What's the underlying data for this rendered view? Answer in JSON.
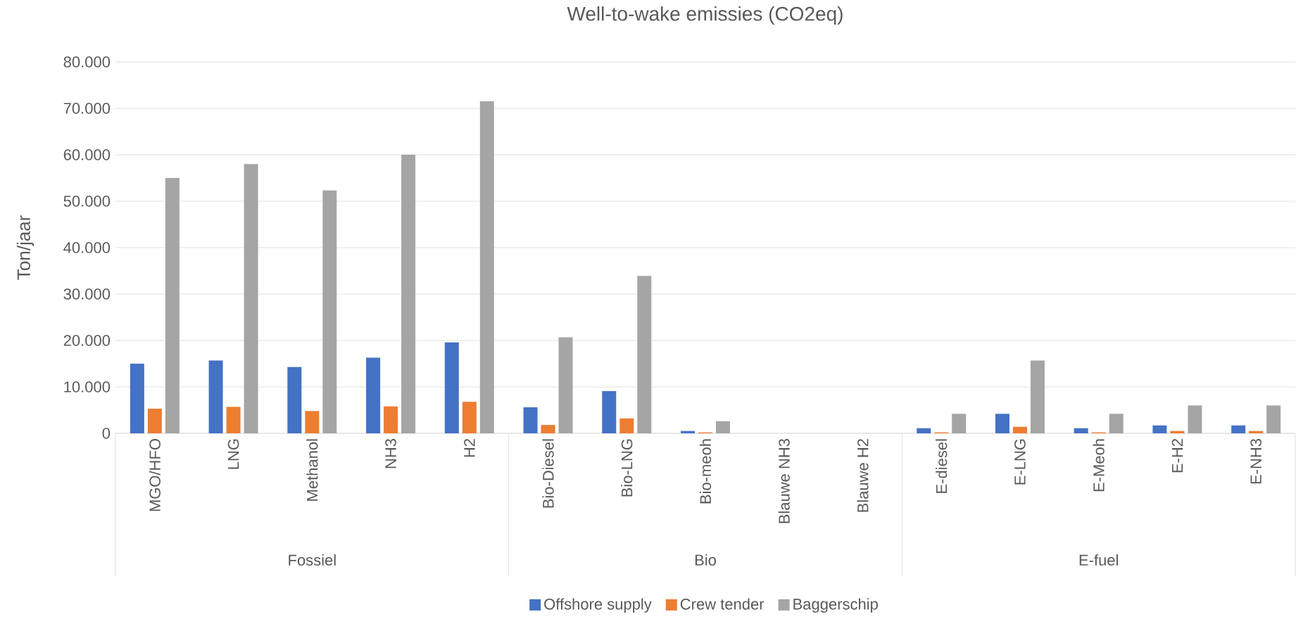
{
  "chart_data": {
    "type": "bar",
    "title": "Well-to-wake emissies (CO2eq)",
    "ylabel": "Ton/jaar",
    "categories": [
      "MGO/HFO",
      "LNG",
      "Methanol",
      "NH3",
      "H2",
      "Bio-Diesel",
      "Bio-LNG",
      "Bio-meoh",
      "Blauwe NH3",
      "Blauwe H2",
      "E-diesel",
      "E-LNG",
      "E-Meoh",
      "E-H2",
      "E-NH3"
    ],
    "series": [
      {
        "name": "Offshore supply",
        "color": "#4472c4",
        "values": [
          15000,
          15700,
          14300,
          16300,
          19600,
          5600,
          9100,
          500,
          0,
          0,
          1100,
          4200,
          1100,
          1700,
          1700
        ]
      },
      {
        "name": "Crew tender",
        "color": "#ed7d31",
        "values": [
          5300,
          5700,
          4800,
          5800,
          6800,
          1800,
          3200,
          200,
          0,
          0,
          200,
          1400,
          200,
          500,
          500
        ]
      },
      {
        "name": "Baggerschip",
        "color": "#a5a5a5",
        "values": [
          55000,
          58000,
          52300,
          60000,
          71500,
          20700,
          33900,
          2600,
          0,
          0,
          4200,
          15700,
          4200,
          6000,
          6000
        ]
      }
    ],
    "ylim": [
      0,
      80000
    ],
    "yticks": [
      {
        "value": 0,
        "label": "0"
      },
      {
        "value": 10000,
        "label": "10.000"
      },
      {
        "value": 20000,
        "label": "20.000"
      },
      {
        "value": 30000,
        "label": "30.000"
      },
      {
        "value": 40000,
        "label": "40.000"
      },
      {
        "value": 50000,
        "label": "50.000"
      },
      {
        "value": 60000,
        "label": "60.000"
      },
      {
        "value": 70000,
        "label": "70.000"
      },
      {
        "value": 80000,
        "label": "80.000"
      }
    ],
    "grid": "y",
    "legend": "bottom",
    "annotations": [
      "Fossiel",
      "Bio",
      "E-fuel"
    ]
  }
}
